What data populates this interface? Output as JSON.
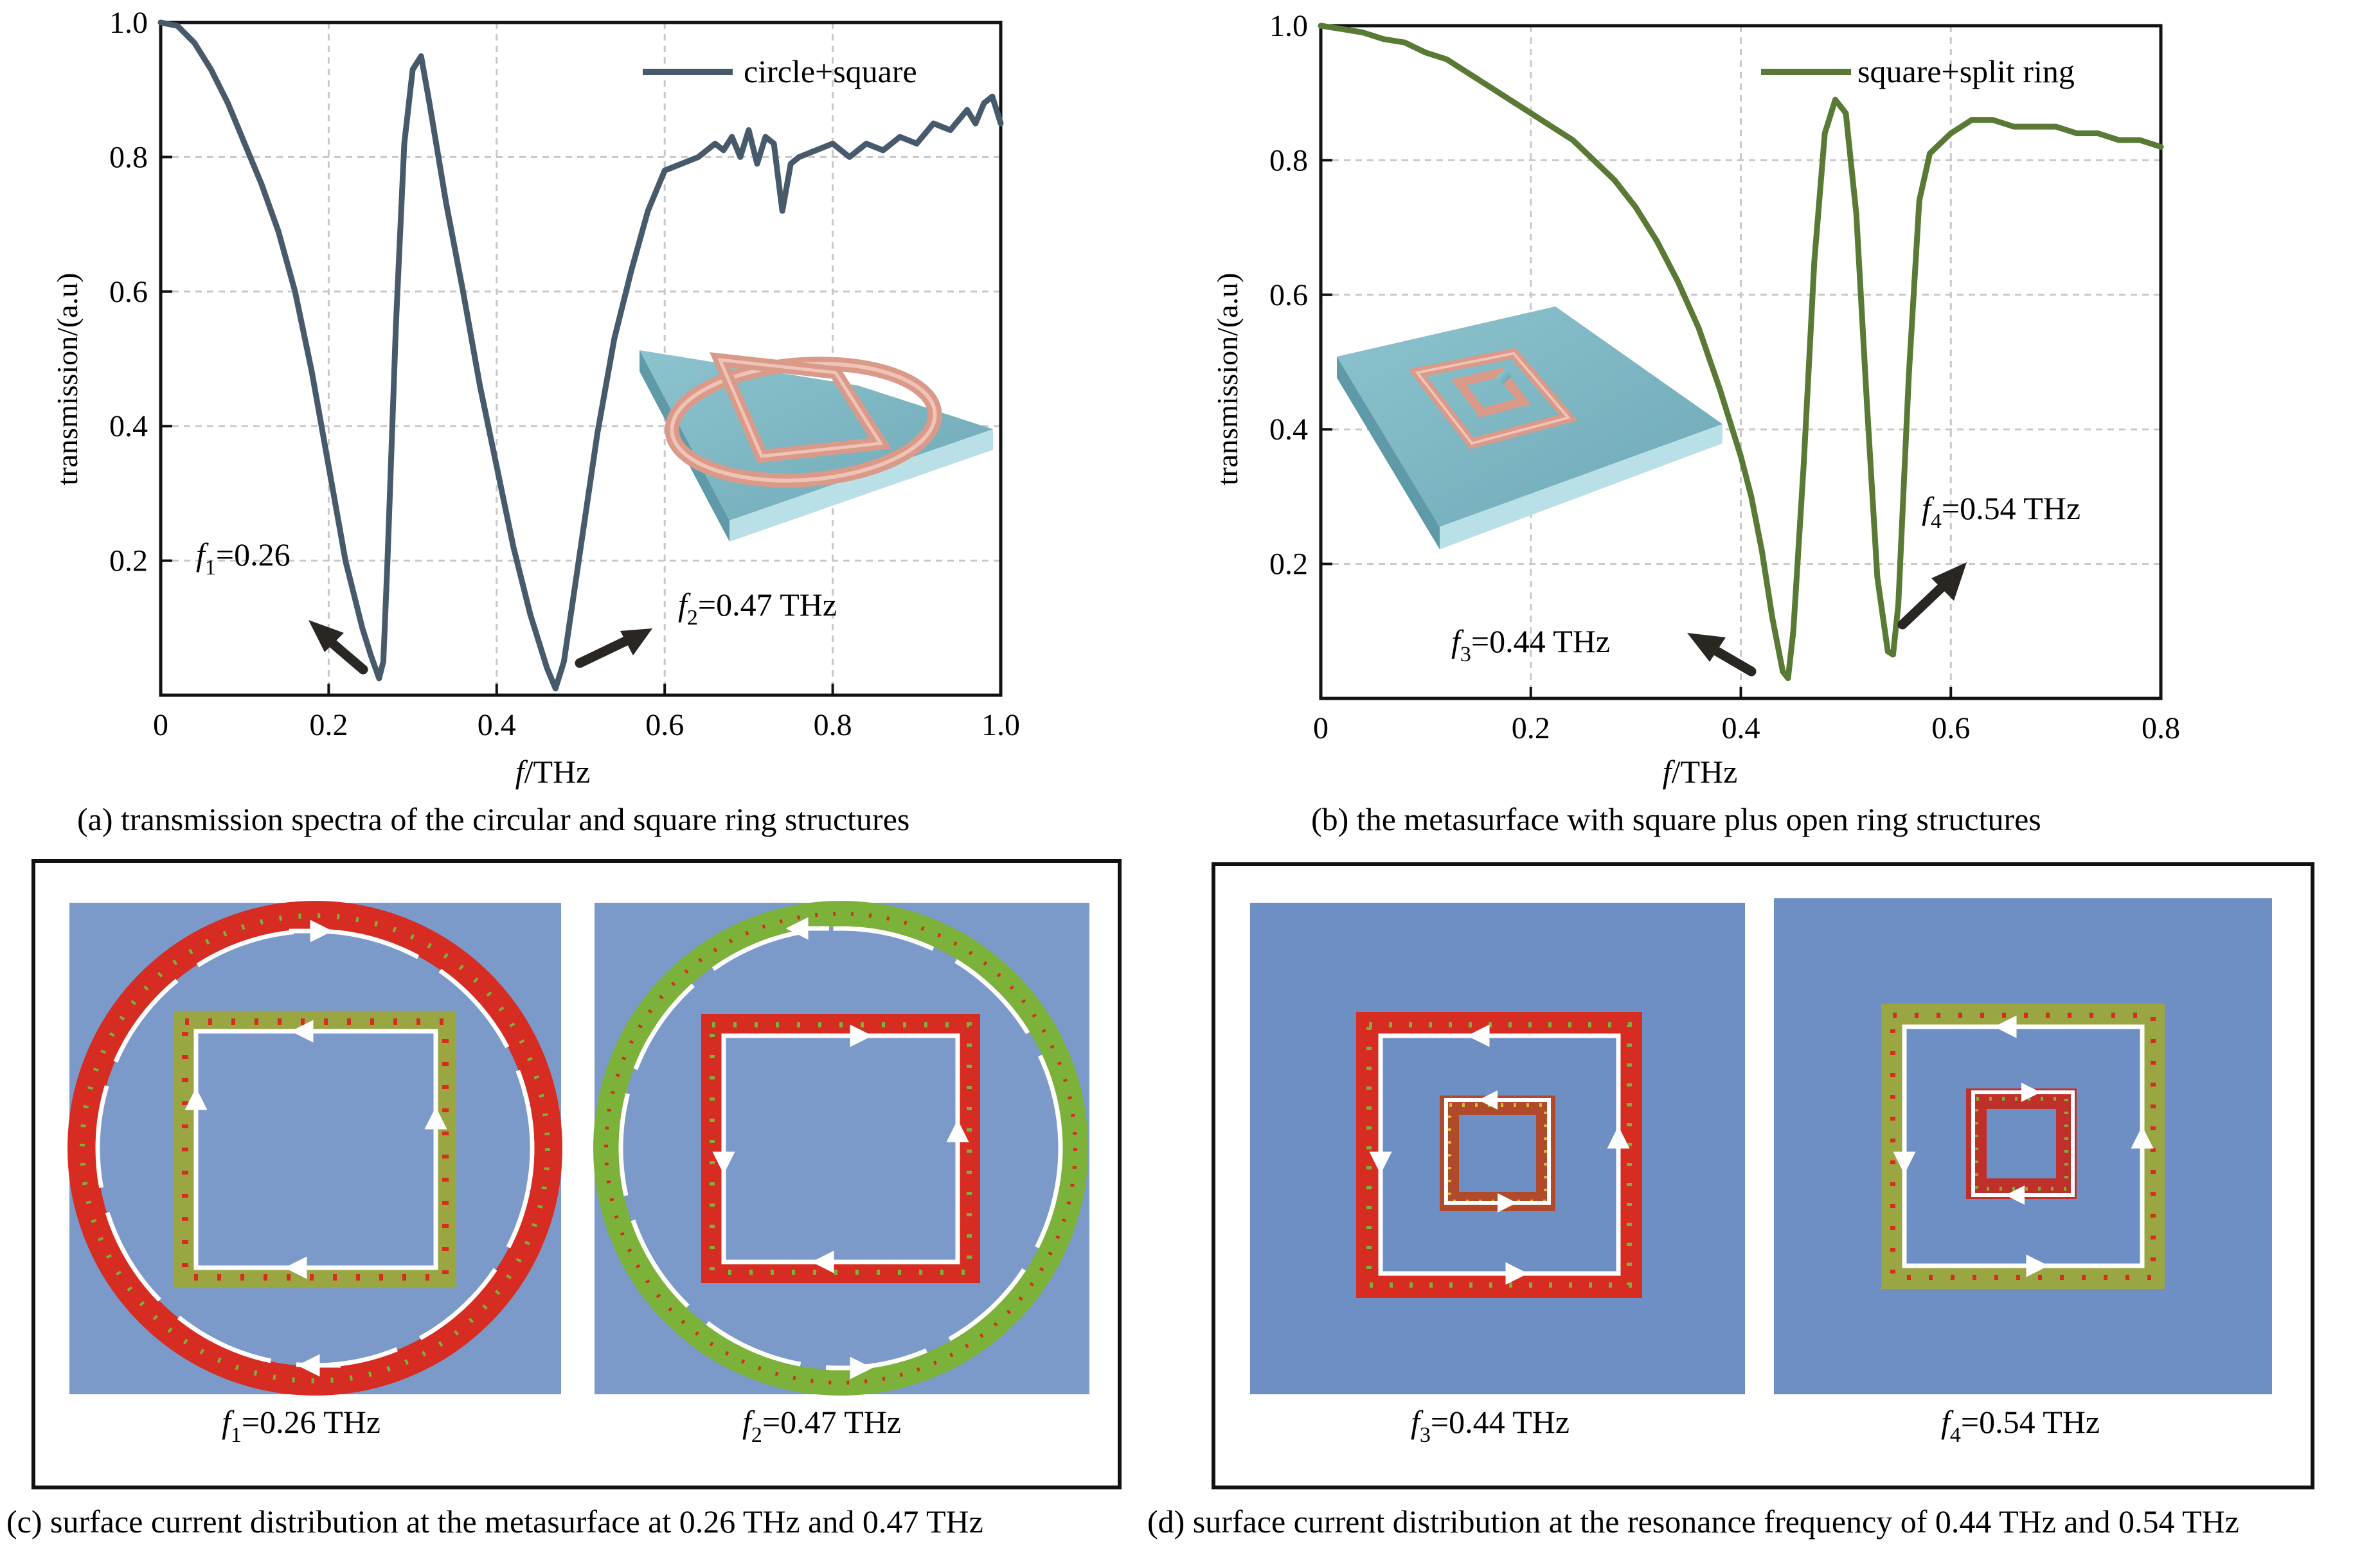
{
  "colors": {
    "series_a": "#465a6c",
    "series_b": "#587a35",
    "substrate": "#7fb8c4",
    "ring": "#d99a8a",
    "field_bg_c": "#7b9ac9",
    "field_bg_d": "#6e8fc3",
    "current_hot": "#d62c22",
    "current_mid": "#7cb23a"
  },
  "chart_data": [
    {
      "type": "line",
      "panel": "a",
      "caption": "(a) transmission spectra of the circular and square ring structures",
      "xlabel_italic": "f",
      "xlabel_rest": "/THz",
      "ylabel": "transmission/(a.u)",
      "xlim": [
        0,
        1.0
      ],
      "ylim": [
        0,
        1.0
      ],
      "x_ticks": [
        "0",
        "0.2",
        "0.4",
        "0.6",
        "0.8",
        "1.0"
      ],
      "y_ticks": [
        "0.2",
        "0.4",
        "0.6",
        "0.8",
        "1.0"
      ],
      "grid": true,
      "legend": "top-right",
      "series": [
        {
          "name": "circle+square",
          "x": [
            0,
            0.02,
            0.04,
            0.06,
            0.08,
            0.1,
            0.12,
            0.14,
            0.16,
            0.18,
            0.2,
            0.22,
            0.24,
            0.25,
            0.26,
            0.265,
            0.27,
            0.28,
            0.29,
            0.3,
            0.31,
            0.32,
            0.34,
            0.36,
            0.38,
            0.4,
            0.42,
            0.44,
            0.46,
            0.47,
            0.48,
            0.5,
            0.52,
            0.54,
            0.56,
            0.58,
            0.6,
            0.62,
            0.64,
            0.66,
            0.67,
            0.68,
            0.69,
            0.7,
            0.71,
            0.72,
            0.73,
            0.735,
            0.74,
            0.75,
            0.76,
            0.78,
            0.8,
            0.82,
            0.84,
            0.86,
            0.88,
            0.9,
            0.92,
            0.94,
            0.96,
            0.97,
            0.98,
            0.99,
            1.0
          ],
          "values": [
            1.0,
            0.995,
            0.97,
            0.93,
            0.88,
            0.82,
            0.76,
            0.69,
            0.6,
            0.48,
            0.34,
            0.2,
            0.1,
            0.06,
            0.025,
            0.05,
            0.2,
            0.55,
            0.82,
            0.93,
            0.95,
            0.88,
            0.73,
            0.6,
            0.46,
            0.34,
            0.22,
            0.12,
            0.04,
            0.01,
            0.05,
            0.22,
            0.39,
            0.53,
            0.63,
            0.72,
            0.78,
            0.79,
            0.8,
            0.82,
            0.81,
            0.83,
            0.8,
            0.84,
            0.79,
            0.83,
            0.82,
            0.77,
            0.72,
            0.79,
            0.8,
            0.81,
            0.82,
            0.8,
            0.82,
            0.81,
            0.83,
            0.82,
            0.85,
            0.84,
            0.87,
            0.85,
            0.88,
            0.89,
            0.85
          ]
        }
      ],
      "annotations": [
        {
          "italic": "f",
          "sub": "1",
          "rest": "=0.26"
        },
        {
          "italic": "f",
          "sub": "2",
          "rest": "=0.47 THz"
        }
      ]
    },
    {
      "type": "line",
      "panel": "b",
      "caption": "(b) the metasurface with square plus open ring structures",
      "xlabel_italic": "f",
      "xlabel_rest": "/THz",
      "ylabel": "transmission/(a.u)",
      "xlim": [
        0,
        0.8
      ],
      "ylim": [
        0,
        1.0
      ],
      "x_ticks": [
        "0",
        "0.2",
        "0.4",
        "0.6",
        "0.8"
      ],
      "y_ticks": [
        "0.2",
        "0.4",
        "0.6",
        "0.8",
        "1.0"
      ],
      "grid": true,
      "legend": "top-right",
      "series": [
        {
          "name": "square+split ring",
          "x": [
            0,
            0.02,
            0.04,
            0.06,
            0.08,
            0.1,
            0.12,
            0.14,
            0.16,
            0.18,
            0.2,
            0.22,
            0.24,
            0.26,
            0.28,
            0.3,
            0.32,
            0.34,
            0.36,
            0.38,
            0.4,
            0.41,
            0.42,
            0.43,
            0.44,
            0.445,
            0.45,
            0.46,
            0.47,
            0.48,
            0.49,
            0.5,
            0.51,
            0.52,
            0.53,
            0.54,
            0.545,
            0.55,
            0.56,
            0.57,
            0.58,
            0.6,
            0.62,
            0.64,
            0.66,
            0.68,
            0.7,
            0.72,
            0.74,
            0.76,
            0.78,
            0.8
          ],
          "values": [
            1.0,
            0.995,
            0.99,
            0.98,
            0.975,
            0.96,
            0.95,
            0.93,
            0.91,
            0.89,
            0.87,
            0.85,
            0.83,
            0.8,
            0.77,
            0.73,
            0.68,
            0.62,
            0.55,
            0.46,
            0.36,
            0.3,
            0.22,
            0.12,
            0.04,
            0.03,
            0.1,
            0.35,
            0.65,
            0.84,
            0.89,
            0.87,
            0.72,
            0.44,
            0.18,
            0.07,
            0.065,
            0.14,
            0.48,
            0.74,
            0.81,
            0.84,
            0.86,
            0.86,
            0.85,
            0.85,
            0.85,
            0.84,
            0.84,
            0.83,
            0.83,
            0.82
          ]
        }
      ],
      "annotations": [
        {
          "italic": "f",
          "sub": "3",
          "rest": "=0.44 THz"
        },
        {
          "italic": "f",
          "sub": "4",
          "rest": "=0.54 THz"
        }
      ]
    }
  ],
  "panel_c": {
    "caption": "(c) surface current distribution at the metasurface at 0.26 THz and 0.47 THz",
    "labels": [
      {
        "italic": "f",
        "sub": "1",
        "rest": "=0.26 THz"
      },
      {
        "italic": "f",
        "sub": "2",
        "rest": "=0.47 THz"
      }
    ]
  },
  "panel_d": {
    "caption": "(d) surface current distribution at the resonance frequency of 0.44 THz and 0.54 THz",
    "labels": [
      {
        "italic": "f",
        "sub": "3",
        "rest": "=0.44 THz"
      },
      {
        "italic": "f",
        "sub": "4",
        "rest": "=0.54 THz"
      }
    ]
  }
}
